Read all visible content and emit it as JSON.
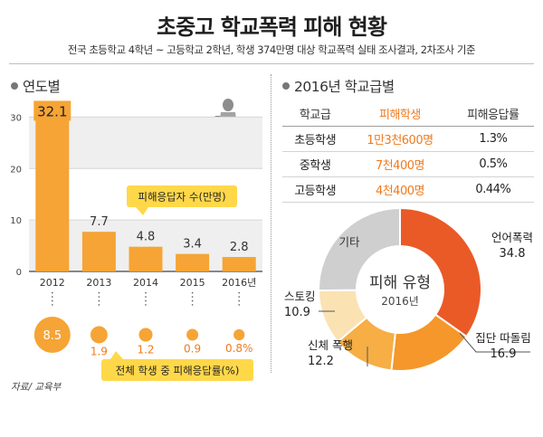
{
  "header": {
    "title": "초중고 학교폭력 피해 현황",
    "subtitle": "전국 초등학교 4학년 ~ 고등학교 2학년, 학생 374만명 대상 학교폭력 실태 조사결과, 2차조사 기준"
  },
  "left_section": {
    "heading": "연도별"
  },
  "right_section": {
    "heading": "2016년 학교급별"
  },
  "source": "자료/ 교육부",
  "colors": {
    "bar": "#f6a435",
    "bar_label_bg": "#f6a435",
    "circle": "#f6a435",
    "highlight_text": "#ef7a1f",
    "callout_bg": "#ffd84a",
    "donut": [
      "#ea5a27",
      "#f5972a",
      "#f6ae45",
      "#fbe2b3",
      "#cfcfcf"
    ]
  },
  "chart_data": [
    {
      "type": "bar",
      "categories": [
        "2012",
        "2013",
        "2014",
        "2015",
        "2016년"
      ],
      "values": [
        32.1,
        7.7,
        4.8,
        3.4,
        2.8
      ],
      "value_labels": [
        "32.1",
        "7.7",
        "4.8",
        "3.4",
        "2.8"
      ],
      "ylim": [
        0,
        32
      ],
      "yticks": [
        0,
        10,
        20,
        30
      ],
      "annotation": "피해응답자 수(만명)"
    },
    {
      "type": "scatter",
      "categories": [
        "2012",
        "2013",
        "2014",
        "2015",
        "2016년"
      ],
      "values": [
        8.5,
        1.9,
        1.2,
        0.9,
        0.8
      ],
      "value_labels": [
        "8.5",
        "1.9",
        "1.2",
        "0.9",
        "0.8%"
      ],
      "annotation": "전체 학생 중 피해응답률(%)"
    },
    {
      "type": "table",
      "columns": [
        "학교급",
        "피해학생",
        "피해응답률"
      ],
      "rows": [
        [
          "초등학생",
          "1만3천600명",
          "1.3%"
        ],
        [
          "중학생",
          "7천400명",
          "0.5%"
        ],
        [
          "고등학생",
          "4천400명",
          "0.44%"
        ]
      ]
    },
    {
      "type": "pie",
      "title": "피해 유형",
      "subtitle": "2016년",
      "categories": [
        "언어폭력",
        "집단 따돌림",
        "신체 폭행",
        "스토킹",
        "기타"
      ],
      "values": [
        34.8,
        16.9,
        12.2,
        10.9,
        25.2
      ],
      "value_labels": [
        "34.8",
        "16.9",
        "12.2",
        "10.9",
        ""
      ]
    }
  ]
}
